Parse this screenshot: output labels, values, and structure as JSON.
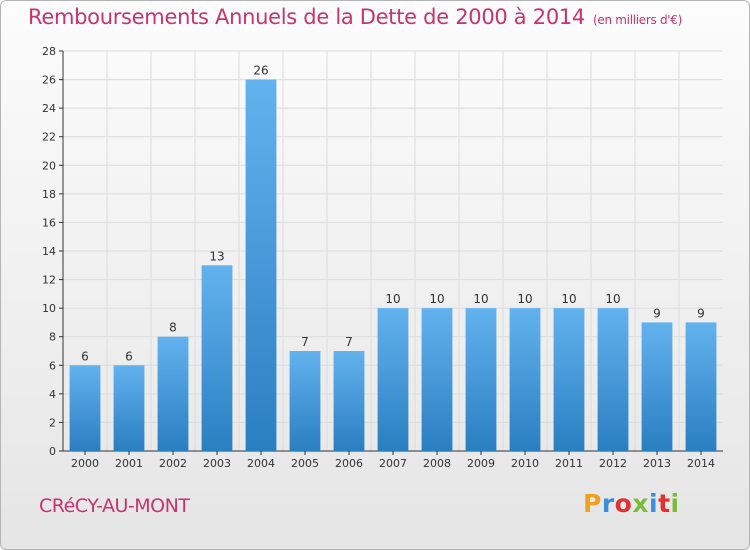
{
  "header": {
    "title": "Remboursements Annuels de la Dette de 2000 à 2014",
    "unit": "(en milliers d'€)"
  },
  "footer": {
    "commune": "CRéCY-AU-MONT",
    "logo": "Proxiti"
  },
  "colors": {
    "title": "#c8336f",
    "bar_light": "#62b2ee",
    "bar_dark": "#2a7fc1",
    "logo_letters": [
      "#f0a020",
      "#3a8fd8",
      "#e03030",
      "#7cbc3c",
      "#3a8fd8",
      "#e03030",
      "#7cbc3c"
    ]
  },
  "chart_data": {
    "type": "bar",
    "title": "Remboursements Annuels de la Dette de 2000 à 2014",
    "categories": [
      "2000",
      "2001",
      "2002",
      "2003",
      "2004",
      "2005",
      "2006",
      "2007",
      "2008",
      "2009",
      "2010",
      "2011",
      "2012",
      "2013",
      "2014"
    ],
    "values": [
      6,
      6,
      8,
      13,
      26,
      7,
      7,
      10,
      10,
      10,
      10,
      10,
      10,
      9,
      9
    ],
    "ylim": [
      0,
      28
    ],
    "yticks": [
      0,
      2,
      4,
      6,
      8,
      10,
      12,
      14,
      16,
      18,
      20,
      22,
      24,
      26,
      28
    ],
    "grid": true,
    "data_labels": true
  }
}
